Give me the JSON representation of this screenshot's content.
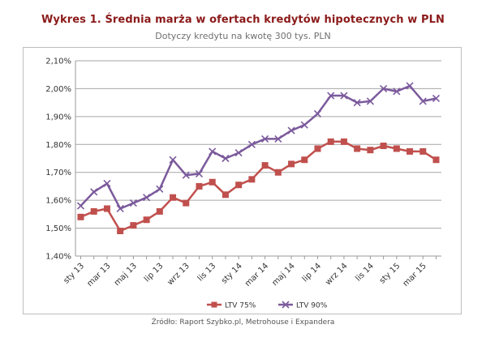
{
  "title": "Wykres 1. Średnia marża w ofertach kredytów hipotecznych w PLN",
  "subtitle": "Dotyczy kredytu na kwotę 300 tys. PLN",
  "source": "Źródło: Raport Szybko.pl, Metrohouse i Expandera",
  "chart_data": {
    "type": "line",
    "title": "Wykres 1. Średnia marża w ofertach kredytów hipotecznych w PLN",
    "subtitle": "Dotyczy kredytu na kwotę 300 tys. PLN",
    "xlabel": "",
    "ylabel": "",
    "ylim": [
      1.4,
      2.1
    ],
    "y_ticks": [
      "1,40%",
      "1,50%",
      "1,60%",
      "1,70%",
      "1,80%",
      "1,90%",
      "2,00%",
      "2,10%"
    ],
    "grid": "horizontal",
    "legend_position": "bottom",
    "x": [
      "sty 13",
      "lut 13",
      "mar 13",
      "kwi 13",
      "maj 13",
      "cze 13",
      "lip 13",
      "sie 13",
      "wrz 13",
      "paź 13",
      "lis 13",
      "gru 13",
      "sty 14",
      "lut 14",
      "mar 14",
      "kwi 14",
      "maj 14",
      "cze 14",
      "lip 14",
      "sie 14",
      "wrz 14",
      "paź 14",
      "lis 14",
      "gru 14",
      "sty 15",
      "lut 15",
      "mar 15",
      "kwi 15"
    ],
    "x_tick_labels": [
      "sty 13",
      "mar 13",
      "maj 13",
      "lip 13",
      "wrz 13",
      "lis 13",
      "sty 14",
      "mar 14",
      "maj 14",
      "lip 14",
      "wrz 14",
      "lis 14",
      "sty 15",
      "mar 15"
    ],
    "series": [
      {
        "name": "LTV 75%",
        "color": "#c0504d",
        "marker": "square",
        "values": [
          1.54,
          1.56,
          1.57,
          1.49,
          1.51,
          1.53,
          1.56,
          1.61,
          1.59,
          1.65,
          1.665,
          1.62,
          1.655,
          1.675,
          1.725,
          1.7,
          1.73,
          1.745,
          1.785,
          1.81,
          1.81,
          1.785,
          1.78,
          1.795,
          1.785,
          1.775,
          1.775,
          1.745
        ]
      },
      {
        "name": "LTV 90%",
        "color": "#7b5a9c",
        "marker": "x",
        "values": [
          1.58,
          1.63,
          1.66,
          1.57,
          1.59,
          1.61,
          1.64,
          1.745,
          1.69,
          1.695,
          1.775,
          1.75,
          1.77,
          1.8,
          1.82,
          1.82,
          1.85,
          1.87,
          1.91,
          1.975,
          1.975,
          1.95,
          1.955,
          2.0,
          1.99,
          2.01,
          1.955,
          1.965
        ]
      }
    ]
  }
}
